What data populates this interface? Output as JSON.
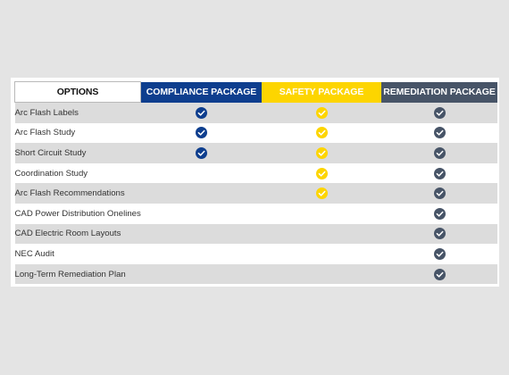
{
  "columns": [
    "OPTIONS",
    "COMPLIANCE PACKAGE",
    "SAFETY PACKAGE",
    "REMEDIATION PACKAGE"
  ],
  "colors": {
    "compliance": "#0e3e8e",
    "safety": "#fdd500",
    "remediation": "#475467"
  },
  "icon": "checkmark-circle-icon",
  "rows": [
    {
      "label": "Arc Flash Labels",
      "compliance": true,
      "safety": true,
      "remediation": true
    },
    {
      "label": "Arc Flash Study",
      "compliance": true,
      "safety": true,
      "remediation": true
    },
    {
      "label": "Short Circuit Study",
      "compliance": true,
      "safety": true,
      "remediation": true
    },
    {
      "label": "Coordination Study",
      "compliance": false,
      "safety": true,
      "remediation": true
    },
    {
      "label": "Arc Flash Recommendations",
      "compliance": false,
      "safety": true,
      "remediation": true
    },
    {
      "label": "CAD Power Distribution Onelines",
      "compliance": false,
      "safety": false,
      "remediation": true
    },
    {
      "label": "CAD Electric Room Layouts",
      "compliance": false,
      "safety": false,
      "remediation": true
    },
    {
      "label": "NEC Audit",
      "compliance": false,
      "safety": false,
      "remediation": true
    },
    {
      "label": "Long-Term Remediation Plan",
      "compliance": false,
      "safety": false,
      "remediation": true
    }
  ]
}
